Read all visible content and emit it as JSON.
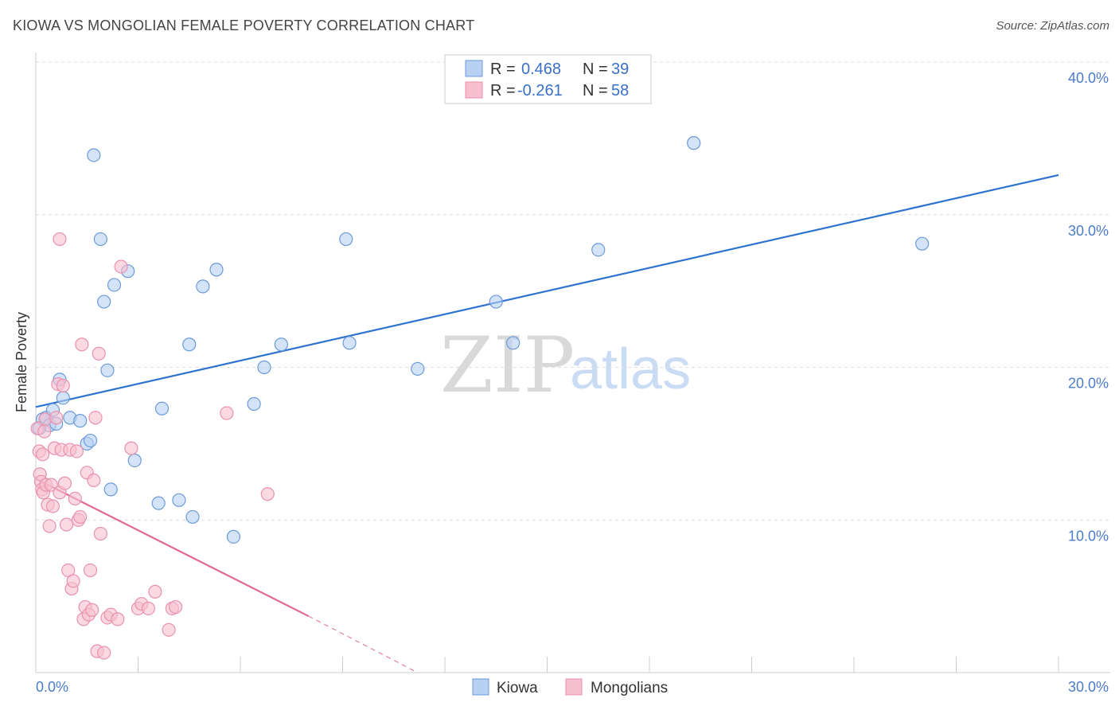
{
  "title": "KIOWA VS MONGOLIAN FEMALE POVERTY CORRELATION CHART",
  "source": "Source: ZipAtlas.com",
  "watermark": {
    "zip": "ZIP",
    "atlas": "atlas"
  },
  "colors": {
    "kiowa_fill": "#b8d1f2",
    "kiowa_stroke": "#6a9bd8",
    "kiowa_line": "#2f72cf",
    "mongol_fill": "#f7bfd0",
    "mongol_stroke": "#e892ad",
    "mongol_line": "#e06a93",
    "grid": "#dddddd",
    "tick_text": "#4a7cc9"
  },
  "legend": {
    "r_label": "R =",
    "n_label": "N =",
    "kiowa": {
      "r": "0.468",
      "n": "39"
    },
    "mongolians": {
      "r": "-0.261",
      "n": "58"
    }
  },
  "chart_data": {
    "type": "scatter",
    "title": "KIOWA VS MONGOLIAN FEMALE POVERTY CORRELATION CHART",
    "xlabel": "",
    "ylabel": "Female Poverty",
    "xlim": [
      0,
      30
    ],
    "ylim": [
      0,
      40
    ],
    "x_tick_labels": [
      "0.0%",
      "30.0%"
    ],
    "y_ticks": [
      10,
      20,
      30,
      40
    ],
    "y_tick_labels": [
      "10.0%",
      "20.0%",
      "30.0%",
      "40.0%"
    ],
    "legend_position": "top-center",
    "series": [
      {
        "name": "Kiowa",
        "points": [
          [
            0.2,
            16.6
          ],
          [
            0.3,
            16.7
          ],
          [
            0.4,
            16.2
          ],
          [
            0.5,
            17.2
          ],
          [
            0.6,
            16.3
          ],
          [
            0.7,
            19.2
          ],
          [
            0.8,
            18.0
          ],
          [
            1.0,
            16.7
          ],
          [
            1.3,
            16.5
          ],
          [
            1.5,
            15.0
          ],
          [
            1.6,
            15.2
          ],
          [
            1.7,
            33.9
          ],
          [
            1.9,
            28.4
          ],
          [
            2.0,
            24.3
          ],
          [
            2.1,
            19.8
          ],
          [
            2.2,
            12.0
          ],
          [
            2.3,
            25.4
          ],
          [
            2.7,
            26.3
          ],
          [
            2.9,
            13.9
          ],
          [
            3.6,
            11.1
          ],
          [
            3.7,
            17.3
          ],
          [
            4.2,
            11.3
          ],
          [
            4.5,
            21.5
          ],
          [
            4.6,
            10.2
          ],
          [
            4.9,
            25.3
          ],
          [
            5.3,
            26.4
          ],
          [
            5.8,
            8.9
          ],
          [
            6.4,
            17.6
          ],
          [
            6.7,
            20.0
          ],
          [
            7.2,
            21.5
          ],
          [
            9.1,
            28.4
          ],
          [
            9.2,
            21.6
          ],
          [
            11.2,
            19.9
          ],
          [
            13.5,
            24.3
          ],
          [
            14.0,
            21.6
          ],
          [
            16.5,
            27.7
          ],
          [
            19.3,
            34.7
          ],
          [
            26.0,
            28.1
          ],
          [
            0.1,
            16.0
          ]
        ]
      },
      {
        "name": "Mongolians",
        "points": [
          [
            0.05,
            16.0
          ],
          [
            0.1,
            14.5
          ],
          [
            0.12,
            13.0
          ],
          [
            0.15,
            12.5
          ],
          [
            0.18,
            12.0
          ],
          [
            0.2,
            14.3
          ],
          [
            0.22,
            11.8
          ],
          [
            0.25,
            15.8
          ],
          [
            0.28,
            16.6
          ],
          [
            0.3,
            12.3
          ],
          [
            0.35,
            11.0
          ],
          [
            0.4,
            9.6
          ],
          [
            0.45,
            12.3
          ],
          [
            0.5,
            10.9
          ],
          [
            0.55,
            14.7
          ],
          [
            0.6,
            16.7
          ],
          [
            0.65,
            18.9
          ],
          [
            0.7,
            11.8
          ],
          [
            0.75,
            14.6
          ],
          [
            0.8,
            18.8
          ],
          [
            0.85,
            12.4
          ],
          [
            0.9,
            9.7
          ],
          [
            0.95,
            6.7
          ],
          [
            1.0,
            14.6
          ],
          [
            1.05,
            5.5
          ],
          [
            1.1,
            6.0
          ],
          [
            1.15,
            11.4
          ],
          [
            1.2,
            14.5
          ],
          [
            1.25,
            10.0
          ],
          [
            1.3,
            10.2
          ],
          [
            1.35,
            21.5
          ],
          [
            1.4,
            3.5
          ],
          [
            1.45,
            4.3
          ],
          [
            1.5,
            13.1
          ],
          [
            1.55,
            3.8
          ],
          [
            1.6,
            6.7
          ],
          [
            1.65,
            4.1
          ],
          [
            1.7,
            12.6
          ],
          [
            1.75,
            16.7
          ],
          [
            1.8,
            1.4
          ],
          [
            1.85,
            20.9
          ],
          [
            1.9,
            9.1
          ],
          [
            2.0,
            1.3
          ],
          [
            2.1,
            3.6
          ],
          [
            2.2,
            3.8
          ],
          [
            2.4,
            3.5
          ],
          [
            2.5,
            26.6
          ],
          [
            0.7,
            28.4
          ],
          [
            2.8,
            14.7
          ],
          [
            3.0,
            4.2
          ],
          [
            3.1,
            4.5
          ],
          [
            3.3,
            4.2
          ],
          [
            3.5,
            5.3
          ],
          [
            3.9,
            2.8
          ],
          [
            4.0,
            4.2
          ],
          [
            4.1,
            4.3
          ],
          [
            5.6,
            17.0
          ],
          [
            6.8,
            11.7
          ]
        ]
      }
    ],
    "trend_lines": [
      {
        "name": "Kiowa",
        "x": [
          0,
          30
        ],
        "y": [
          17.4,
          32.6
        ],
        "style": "solid"
      },
      {
        "name": "Mongolians",
        "x": [
          0,
          8
        ],
        "y": [
          12.7,
          3.7
        ],
        "style": "solid"
      },
      {
        "name": "Mongolians-extension",
        "x": [
          8,
          11.2
        ],
        "y": [
          3.7,
          0
        ],
        "style": "dashed"
      }
    ]
  }
}
